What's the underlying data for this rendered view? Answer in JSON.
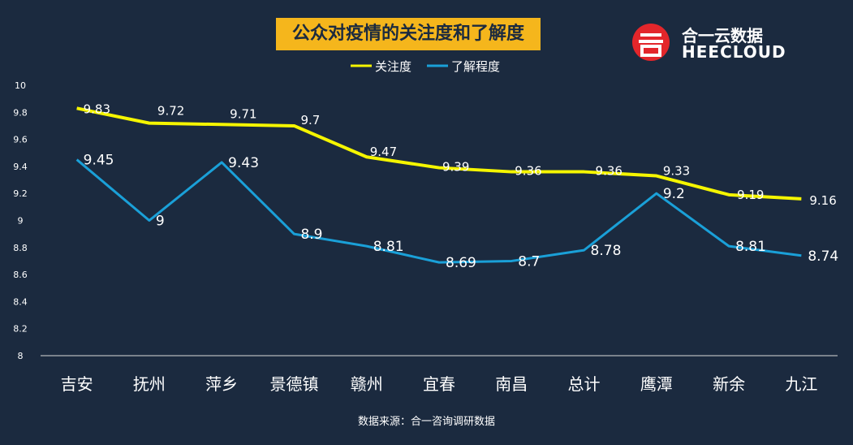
{
  "title": "公众对疫情的关注度和了解度",
  "logo": {
    "cn_name": "合一云数据",
    "en_name": "HEECLOUD",
    "icon": "heecloud-logo-icon"
  },
  "source": "数据来源：合一咨询调研数据",
  "colors": {
    "background": "#1b2a3f",
    "attention": "#f5f500",
    "understanding": "#1aa0d8",
    "title_bg": "#f5b61c"
  },
  "chart_data": {
    "type": "line",
    "categories": [
      "吉安",
      "抚州",
      "萍乡",
      "景德镇",
      "赣州",
      "宜春",
      "南昌",
      "总计",
      "鹰潭",
      "新余",
      "九江"
    ],
    "series": [
      {
        "name": "关注度",
        "values": [
          9.83,
          9.72,
          9.71,
          9.7,
          9.47,
          9.39,
          9.36,
          9.36,
          9.33,
          9.19,
          9.16
        ],
        "labels": [
          "9.83",
          "9.72",
          "9.71",
          "9.7",
          "9.47",
          "9.39",
          "9.36",
          "9.36",
          "9.33",
          "9.19",
          "9.16"
        ]
      },
      {
        "name": "了解程度",
        "values": [
          9.45,
          9.0,
          9.43,
          8.9,
          8.81,
          8.69,
          8.7,
          8.78,
          9.2,
          8.81,
          8.74
        ],
        "labels": [
          "9.45",
          "9",
          "9.43",
          "8.9",
          "8.81",
          "8.69",
          "8.7",
          "8.78",
          "9.2",
          "8.81",
          "8.74"
        ]
      }
    ],
    "yticks": [
      "8",
      "8.2",
      "8.4",
      "8.6",
      "8.8",
      "9",
      "9.2",
      "9.4",
      "9.6",
      "9.8",
      "10"
    ],
    "ylim": [
      8,
      10
    ],
    "legend": "top-center",
    "grid": false
  }
}
